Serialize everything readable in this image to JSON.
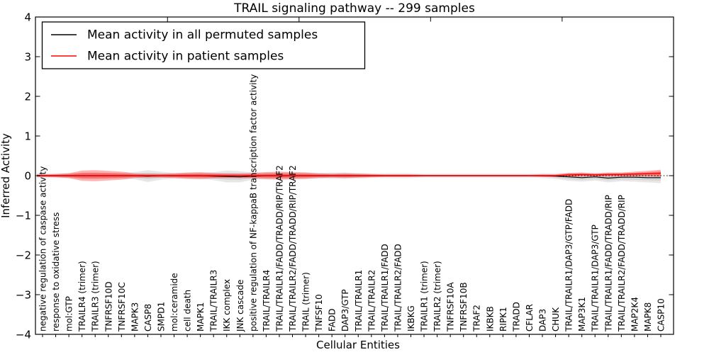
{
  "title": "TRAIL signaling pathway -- 299 samples",
  "axes": {
    "ylabel": "Inferred Activity",
    "xlabel": "Cellular Entities",
    "ytick_labels": [
      "4",
      "3",
      "2",
      "1",
      "0",
      "−1",
      "−2",
      "−3",
      "−4"
    ],
    "ytick_values": [
      4,
      3,
      2,
      1,
      0,
      -1,
      -2,
      -3,
      -4
    ],
    "ylim": [
      -4,
      4
    ],
    "xtick_positions": [
      10,
      20,
      30,
      40
    ]
  },
  "legend": {
    "items": [
      {
        "label": "Mean activity in all permuted samples",
        "color": "#000000"
      },
      {
        "label": "Mean activity in patient samples",
        "color": "#ff0000"
      }
    ]
  },
  "colors": {
    "permuted_line": "#000000",
    "patient_line": "#ff0000",
    "permuted_band": "#aaaaaa",
    "patient_band": "#ff0000",
    "zero_line": "#000000"
  },
  "chart_data": {
    "type": "line",
    "title": "TRAIL signaling pathway -- 299 samples",
    "xlabel": "Cellular Entities",
    "ylabel": "Inferred Activity",
    "ylim": [
      -4,
      4
    ],
    "legend_position": "upper left",
    "grid": false,
    "zero_reference_line": "dotted",
    "categories": [
      "negative regulation of caspase activity",
      "response to oxidative stress",
      "mol:GTP",
      "TRAILR4 (trimer)",
      "TRAILR3 (trimer)",
      "TNFRSF10D",
      "TNFRSF10C",
      "MAPK3",
      "CASP8",
      "SMPD1",
      "mol:ceramide",
      "cell death",
      "MAPK1",
      "TRAIL/TRAILR3",
      "IKK complex",
      "JNK cascade",
      "positive regulation of NF-kappaB transcription factor activity",
      "TRAIL/TRAILR4",
      "TRAIL/TRAILR1/FADD/TRADD/RIP/TRAF2",
      "TRAIL/TRAILR2/FADD/TRADD/RIP/TRAF2",
      "TRAIL (trimer)",
      "TNFSF10",
      "FADD",
      "DAP3/GTP",
      "TRAIL/TRAILR1",
      "TRAIL/TRAILR2",
      "TRAIL/TRAILR1/FADD",
      "TRAIL/TRAILR2/FADD",
      "IKBKG",
      "TRAILR1 (trimer)",
      "TRAILR2 (trimer)",
      "TNFRSF10A",
      "TNFRSF10B",
      "TRAF2",
      "IKBKB",
      "RIPK1",
      "TRADD",
      "CFLAR",
      "DAP3",
      "CHUK",
      "TRAIL/TRAILR1/DAP3/GTP/FADD",
      "MAP3K1",
      "TRAIL/TRAILR1/DAP3/GTP",
      "TRAIL/TRAILR1/FADD/TRADD/RIP",
      "TRAIL/TRAILR2/FADD/TRADD/RIP",
      "MAP2K4",
      "MAPK8",
      "CASP10"
    ],
    "series": [
      {
        "name": "Mean activity in all permuted samples",
        "color": "#000000",
        "values": [
          0,
          0,
          0,
          0,
          0,
          0,
          0,
          0,
          -0.01,
          0,
          0,
          0,
          0,
          -0.01,
          -0.02,
          -0.03,
          -0.01,
          0,
          0,
          0,
          0,
          0,
          0,
          0,
          0,
          0,
          0,
          0,
          0,
          0,
          0,
          0,
          0,
          0,
          0,
          0,
          0,
          0,
          0,
          -0.01,
          -0.03,
          -0.05,
          -0.03,
          -0.06,
          -0.04,
          -0.04,
          -0.05,
          -0.05
        ],
        "band_halfwidth": [
          0.06,
          0.06,
          0.07,
          0.07,
          0.07,
          0.07,
          0.07,
          0.09,
          0.15,
          0.1,
          0.07,
          0.07,
          0.07,
          0.1,
          0.15,
          0.14,
          0.09,
          0.08,
          0.08,
          0.08,
          0.08,
          0.07,
          0.08,
          0.08,
          0.07,
          0.06,
          0.06,
          0.06,
          0.06,
          0.05,
          0.05,
          0.05,
          0.05,
          0.05,
          0.05,
          0.05,
          0.05,
          0.05,
          0.06,
          0.07,
          0.1,
          0.1,
          0.09,
          0.11,
          0.1,
          0.11,
          0.12,
          0.14
        ]
      },
      {
        "name": "Mean activity in patient samples",
        "color": "#ff0000",
        "values": [
          0,
          0,
          0,
          0,
          0,
          0,
          0,
          0,
          0,
          0,
          0,
          0,
          0,
          0,
          0,
          0,
          0,
          0,
          0,
          0,
          0,
          0,
          0,
          0,
          0,
          0,
          0,
          0,
          0,
          0,
          0,
          0,
          0,
          0,
          0,
          0,
          0,
          0,
          0,
          0,
          0.02,
          0.03,
          0.02,
          0.03,
          0.03,
          0.04,
          0.05,
          0.06
        ],
        "band_halfwidth": [
          0.03,
          0.04,
          0.06,
          0.13,
          0.14,
          0.12,
          0.1,
          0.06,
          0.05,
          0.05,
          0.06,
          0.08,
          0.09,
          0.07,
          0.06,
          0.06,
          0.07,
          0.09,
          0.1,
          0.09,
          0.08,
          0.06,
          0.05,
          0.06,
          0.05,
          0.04,
          0.03,
          0.03,
          0.03,
          0.02,
          0.02,
          0.02,
          0.02,
          0.02,
          0.02,
          0.02,
          0.02,
          0.02,
          0.03,
          0.03,
          0.05,
          0.05,
          0.04,
          0.05,
          0.05,
          0.06,
          0.07,
          0.09
        ]
      }
    ]
  }
}
